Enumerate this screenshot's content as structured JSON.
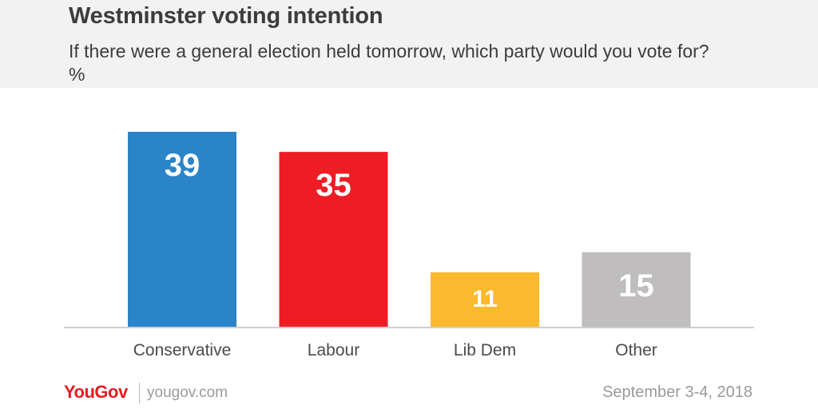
{
  "header": {
    "title": "Westminster voting intention",
    "subtitle": "If there were a general election held tomorrow, which party would you vote for? %"
  },
  "chart_data": {
    "type": "bar",
    "categories": [
      "Conservative",
      "Labour",
      "Lib Dem",
      "Other"
    ],
    "values": [
      39,
      35,
      11,
      15
    ],
    "colors": [
      "#2c84c8",
      "#ee1c25",
      "#fbb92e",
      "#bfbdbd"
    ],
    "ylim": [
      0,
      39
    ],
    "grid": false,
    "data_labels": true
  },
  "footer": {
    "brand": "YouGov",
    "url": "yougov.com",
    "date": "September 3-4, 2018"
  }
}
